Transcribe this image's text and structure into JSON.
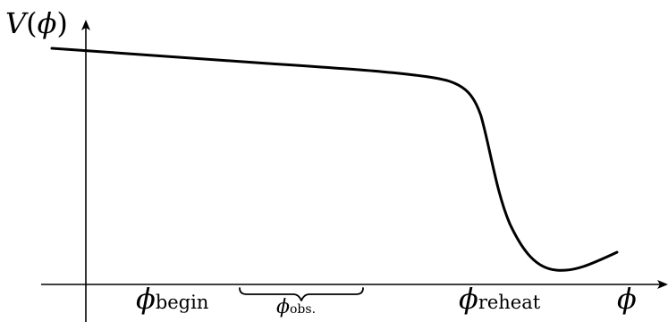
{
  "diagram": {
    "y_axis_label": {
      "symbol": "V",
      "open": "(",
      "arg": "ϕ",
      "close": ")"
    },
    "x_axis_label": {
      "symbol": "ϕ"
    },
    "marks": {
      "begin": {
        "symbol": "ϕ",
        "subscript": "begin"
      },
      "obs": {
        "symbol": "ϕ",
        "subscript": "obs."
      },
      "reheat": {
        "symbol": "ϕ",
        "subscript": "reheat"
      }
    },
    "colors": {
      "ink": "#000000",
      "background": "#ffffff"
    },
    "description_shape": "potential plateau that drops steeply near reheat and ends in a shallow minimum"
  }
}
